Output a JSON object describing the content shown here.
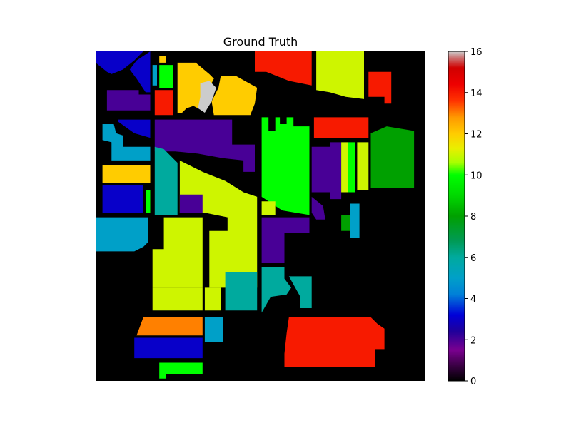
{
  "chart_data": {
    "type": "heatmap",
    "title": "Ground Truth",
    "xlabel": "",
    "ylabel": "",
    "colormap": "nipy_spectral",
    "colorbar": {
      "range": [
        0,
        16
      ],
      "ticks": [
        "0",
        "2",
        "4",
        "6",
        "8",
        "10",
        "12",
        "14",
        "16"
      ],
      "stops": [
        {
          "v": 0,
          "c": "#000000"
        },
        {
          "v": 0.75,
          "c": "#3a0044"
        },
        {
          "v": 1.5,
          "c": "#7a0090"
        },
        {
          "v": 2.4,
          "c": "#20009a"
        },
        {
          "v": 3.2,
          "c": "#0000d8"
        },
        {
          "v": 4.2,
          "c": "#0080d8"
        },
        {
          "v": 5.0,
          "c": "#00a0c8"
        },
        {
          "v": 6.0,
          "c": "#00aa9e"
        },
        {
          "v": 6.8,
          "c": "#009a55"
        },
        {
          "v": 8.0,
          "c": "#00a000"
        },
        {
          "v": 9.0,
          "c": "#00d800"
        },
        {
          "v": 10.0,
          "c": "#00ff00"
        },
        {
          "v": 10.6,
          "c": "#a8ff00"
        },
        {
          "v": 11.3,
          "c": "#eaee00"
        },
        {
          "v": 12.0,
          "c": "#ffcc00"
        },
        {
          "v": 12.8,
          "c": "#ff9900"
        },
        {
          "v": 13.6,
          "c": "#ff3300"
        },
        {
          "v": 14.4,
          "c": "#ee0000"
        },
        {
          "v": 15.2,
          "c": "#d00000"
        },
        {
          "v": 15.7,
          "c": "#cc7777"
        },
        {
          "v": 16,
          "c": "#cccccc"
        }
      ]
    },
    "image_size": [
      145,
      145
    ],
    "background_class": 0,
    "regions": [
      {
        "c": 3,
        "pts": [
          [
            0,
            0
          ],
          [
            21,
            0
          ],
          [
            17,
            4
          ],
          [
            12,
            8
          ],
          [
            7,
            10
          ],
          [
            5,
            9
          ],
          [
            0,
            5
          ]
        ]
      },
      {
        "c": 3,
        "pts": [
          [
            18,
            4
          ],
          [
            24,
            0
          ],
          [
            24,
            18
          ],
          [
            22,
            18
          ],
          [
            18,
            12
          ],
          [
            15,
            8
          ]
        ]
      },
      {
        "c": 5,
        "pts": [
          [
            25,
            6
          ],
          [
            27,
            6
          ],
          [
            27,
            15
          ],
          [
            25,
            15
          ]
        ]
      },
      {
        "c": 12,
        "pts": [
          [
            28,
            2
          ],
          [
            31,
            2
          ],
          [
            31,
            5
          ],
          [
            28,
            5
          ]
        ]
      },
      {
        "c": 10,
        "pts": [
          [
            28,
            6
          ],
          [
            34,
            6
          ],
          [
            34,
            16
          ],
          [
            28,
            16
          ]
        ]
      },
      {
        "c": 14,
        "pts": [
          [
            26,
            17
          ],
          [
            34,
            17
          ],
          [
            34,
            28
          ],
          [
            26,
            28
          ]
        ]
      },
      {
        "c": 12,
        "pts": [
          [
            36,
            5
          ],
          [
            44,
            5
          ],
          [
            50,
            10
          ],
          [
            52,
            12
          ],
          [
            50,
            16
          ],
          [
            48,
            22
          ],
          [
            45,
            25
          ],
          [
            43,
            24
          ],
          [
            40,
            25
          ],
          [
            38,
            27
          ],
          [
            36,
            27
          ]
        ]
      },
      {
        "c": 16,
        "pts": [
          [
            46,
            14
          ],
          [
            50,
            13
          ],
          [
            53,
            16
          ],
          [
            51,
            22
          ],
          [
            48,
            27
          ],
          [
            45,
            25
          ],
          [
            46,
            20
          ]
        ]
      },
      {
        "c": 12,
        "pts": [
          [
            55,
            11
          ],
          [
            62,
            11
          ],
          [
            71,
            16
          ],
          [
            70,
            23
          ],
          [
            68,
            28
          ],
          [
            52,
            28
          ],
          [
            51,
            22
          ],
          [
            54,
            16
          ]
        ]
      },
      {
        "c": 2,
        "pts": [
          [
            5,
            17
          ],
          [
            19,
            17
          ],
          [
            19,
            19
          ],
          [
            24,
            19
          ],
          [
            24,
            26
          ],
          [
            5,
            26
          ]
        ]
      },
      {
        "c": 14,
        "pts": [
          [
            70,
            0
          ],
          [
            95,
            0
          ],
          [
            95,
            15
          ],
          [
            85,
            13
          ],
          [
            75,
            9
          ],
          [
            70,
            9
          ]
        ]
      },
      {
        "c": 11,
        "pts": [
          [
            97,
            0
          ],
          [
            118,
            0
          ],
          [
            118,
            21
          ],
          [
            110,
            20
          ],
          [
            103,
            18
          ],
          [
            97,
            17
          ]
        ]
      },
      {
        "c": 14,
        "pts": [
          [
            120,
            9
          ],
          [
            130,
            9
          ],
          [
            130,
            23
          ],
          [
            127,
            23
          ],
          [
            127,
            20
          ],
          [
            120,
            20
          ]
        ]
      },
      {
        "c": 3,
        "pts": [
          [
            10,
            30
          ],
          [
            24,
            30
          ],
          [
            24,
            38
          ],
          [
            17,
            36
          ],
          [
            10,
            31
          ]
        ]
      },
      {
        "c": 2,
        "pts": [
          [
            26,
            30
          ],
          [
            60,
            30
          ],
          [
            60,
            41
          ],
          [
            70,
            41
          ],
          [
            70,
            53
          ],
          [
            65,
            53
          ],
          [
            65,
            48
          ],
          [
            56,
            47
          ],
          [
            45,
            45
          ],
          [
            35,
            44
          ],
          [
            26,
            44
          ]
        ]
      },
      {
        "c": 10,
        "pts": [
          [
            73,
            29
          ],
          [
            76,
            29
          ],
          [
            76,
            35
          ],
          [
            79,
            35
          ],
          [
            79,
            29
          ],
          [
            81,
            29
          ],
          [
            81,
            32
          ],
          [
            84,
            32
          ],
          [
            84,
            29
          ],
          [
            87,
            29
          ],
          [
            87,
            33
          ],
          [
            94,
            33
          ],
          [
            94,
            72
          ],
          [
            88,
            71
          ],
          [
            82,
            70
          ],
          [
            76,
            66
          ],
          [
            73,
            64
          ]
        ]
      },
      {
        "c": 14,
        "pts": [
          [
            96,
            29
          ],
          [
            120,
            29
          ],
          [
            120,
            38
          ],
          [
            96,
            38
          ]
        ]
      },
      {
        "c": 8,
        "pts": [
          [
            121,
            36
          ],
          [
            128,
            33
          ],
          [
            140,
            35
          ],
          [
            140,
            60
          ],
          [
            121,
            60
          ]
        ]
      },
      {
        "c": 5,
        "pts": [
          [
            3,
            32
          ],
          [
            8,
            32
          ],
          [
            9,
            36
          ],
          [
            12,
            37
          ],
          [
            12,
            42
          ],
          [
            24,
            42
          ],
          [
            24,
            48
          ],
          [
            7,
            48
          ],
          [
            7,
            40
          ],
          [
            3,
            39
          ]
        ]
      },
      {
        "c": 2,
        "pts": [
          [
            95,
            42
          ],
          [
            103,
            42
          ],
          [
            103,
            62
          ],
          [
            95,
            62
          ]
        ]
      },
      {
        "c": 2,
        "pts": [
          [
            103,
            40
          ],
          [
            108,
            40
          ],
          [
            108,
            65
          ],
          [
            103,
            65
          ]
        ]
      },
      {
        "c": 11,
        "pts": [
          [
            108,
            40
          ],
          [
            111,
            40
          ],
          [
            111,
            62
          ],
          [
            108,
            62
          ]
        ]
      },
      {
        "c": 10,
        "pts": [
          [
            111,
            40
          ],
          [
            114,
            40
          ],
          [
            114,
            62
          ],
          [
            111,
            62
          ]
        ]
      },
      {
        "c": 11,
        "pts": [
          [
            115,
            40
          ],
          [
            120,
            40
          ],
          [
            120,
            61
          ],
          [
            115,
            61
          ]
        ]
      },
      {
        "c": 6,
        "pts": [
          [
            26,
            42
          ],
          [
            30,
            43
          ],
          [
            36,
            49
          ],
          [
            36,
            72
          ],
          [
            26,
            72
          ]
        ]
      },
      {
        "c": 11,
        "pts": [
          [
            37,
            48
          ],
          [
            47,
            53
          ],
          [
            57,
            57
          ],
          [
            65,
            62
          ],
          [
            71,
            64
          ],
          [
            71,
            104
          ],
          [
            50,
            104
          ],
          [
            50,
            79
          ],
          [
            58,
            79
          ],
          [
            58,
            73
          ],
          [
            48,
            71
          ],
          [
            37,
            71
          ]
        ]
      },
      {
        "c": 12,
        "pts": [
          [
            3,
            50
          ],
          [
            24,
            50
          ],
          [
            24,
            58
          ],
          [
            3,
            58
          ]
        ]
      },
      {
        "c": 3,
        "pts": [
          [
            3,
            59
          ],
          [
            21,
            59
          ],
          [
            21,
            71
          ],
          [
            3,
            71
          ]
        ]
      },
      {
        "c": 10,
        "pts": [
          [
            22,
            61
          ],
          [
            24,
            61
          ],
          [
            24,
            71
          ],
          [
            22,
            71
          ]
        ]
      },
      {
        "c": 2,
        "pts": [
          [
            37,
            63
          ],
          [
            47,
            63
          ],
          [
            47,
            71
          ],
          [
            37,
            71
          ]
        ]
      },
      {
        "c": 11,
        "pts": [
          [
            73,
            66
          ],
          [
            79,
            66
          ],
          [
            79,
            72
          ],
          [
            73,
            72
          ]
        ]
      },
      {
        "c": 2,
        "pts": [
          [
            95,
            64
          ],
          [
            100,
            68
          ],
          [
            101,
            74
          ],
          [
            97,
            74
          ],
          [
            95,
            71
          ]
        ]
      },
      {
        "c": 5,
        "pts": [
          [
            112,
            67
          ],
          [
            116,
            67
          ],
          [
            116,
            82
          ],
          [
            112,
            82
          ]
        ]
      },
      {
        "c": 8,
        "pts": [
          [
            108,
            72
          ],
          [
            112,
            72
          ],
          [
            112,
            79
          ],
          [
            108,
            79
          ]
        ]
      },
      {
        "c": 5,
        "pts": [
          [
            0,
            73
          ],
          [
            23,
            73
          ],
          [
            23,
            84
          ],
          [
            21,
            86
          ],
          [
            17,
            88
          ],
          [
            0,
            88
          ]
        ]
      },
      {
        "c": 11,
        "pts": [
          [
            30,
            73
          ],
          [
            47,
            73
          ],
          [
            47,
            104
          ],
          [
            25,
            104
          ],
          [
            25,
            87
          ],
          [
            30,
            87
          ]
        ]
      },
      {
        "c": 2,
        "pts": [
          [
            73,
            73
          ],
          [
            94,
            73
          ],
          [
            94,
            80
          ],
          [
            83,
            80
          ],
          [
            83,
            93
          ],
          [
            73,
            93
          ]
        ]
      },
      {
        "c": 6,
        "pts": [
          [
            73,
            95
          ],
          [
            83,
            95
          ],
          [
            83,
            100
          ],
          [
            86,
            104
          ],
          [
            84,
            107
          ],
          [
            77,
            108
          ],
          [
            73,
            115
          ]
        ]
      },
      {
        "c": 6,
        "pts": [
          [
            85,
            99
          ],
          [
            95,
            99
          ],
          [
            95,
            113
          ],
          [
            90,
            113
          ],
          [
            90,
            108
          ]
        ]
      },
      {
        "c": 6,
        "pts": [
          [
            57,
            97
          ],
          [
            71,
            97
          ],
          [
            71,
            114
          ],
          [
            57,
            114
          ]
        ]
      },
      {
        "c": 11,
        "pts": [
          [
            25,
            104
          ],
          [
            47,
            104
          ],
          [
            47,
            114
          ],
          [
            25,
            114
          ]
        ]
      },
      {
        "c": 11,
        "pts": [
          [
            48,
            104
          ],
          [
            55,
            104
          ],
          [
            55,
            114
          ],
          [
            48,
            114
          ]
        ]
      },
      {
        "c": 13,
        "pts": [
          [
            21,
            117
          ],
          [
            47,
            117
          ],
          [
            47,
            125
          ],
          [
            18,
            125
          ]
        ]
      },
      {
        "c": 5,
        "pts": [
          [
            48,
            117
          ],
          [
            56,
            117
          ],
          [
            56,
            128
          ],
          [
            48,
            128
          ]
        ]
      },
      {
        "c": 3,
        "pts": [
          [
            17,
            126
          ],
          [
            47,
            126
          ],
          [
            47,
            135
          ],
          [
            17,
            135
          ]
        ]
      },
      {
        "c": 10,
        "pts": [
          [
            28,
            137
          ],
          [
            47,
            137
          ],
          [
            47,
            142
          ],
          [
            31,
            142
          ],
          [
            31,
            144
          ],
          [
            28,
            144
          ]
        ]
      },
      {
        "c": 14,
        "pts": [
          [
            85,
            117
          ],
          [
            121,
            117
          ],
          [
            124,
            120
          ],
          [
            127,
            122
          ],
          [
            127,
            131
          ],
          [
            123,
            131
          ],
          [
            123,
            139
          ],
          [
            83,
            139
          ],
          [
            83,
            133
          ],
          [
            84,
            124
          ]
        ]
      }
    ]
  }
}
